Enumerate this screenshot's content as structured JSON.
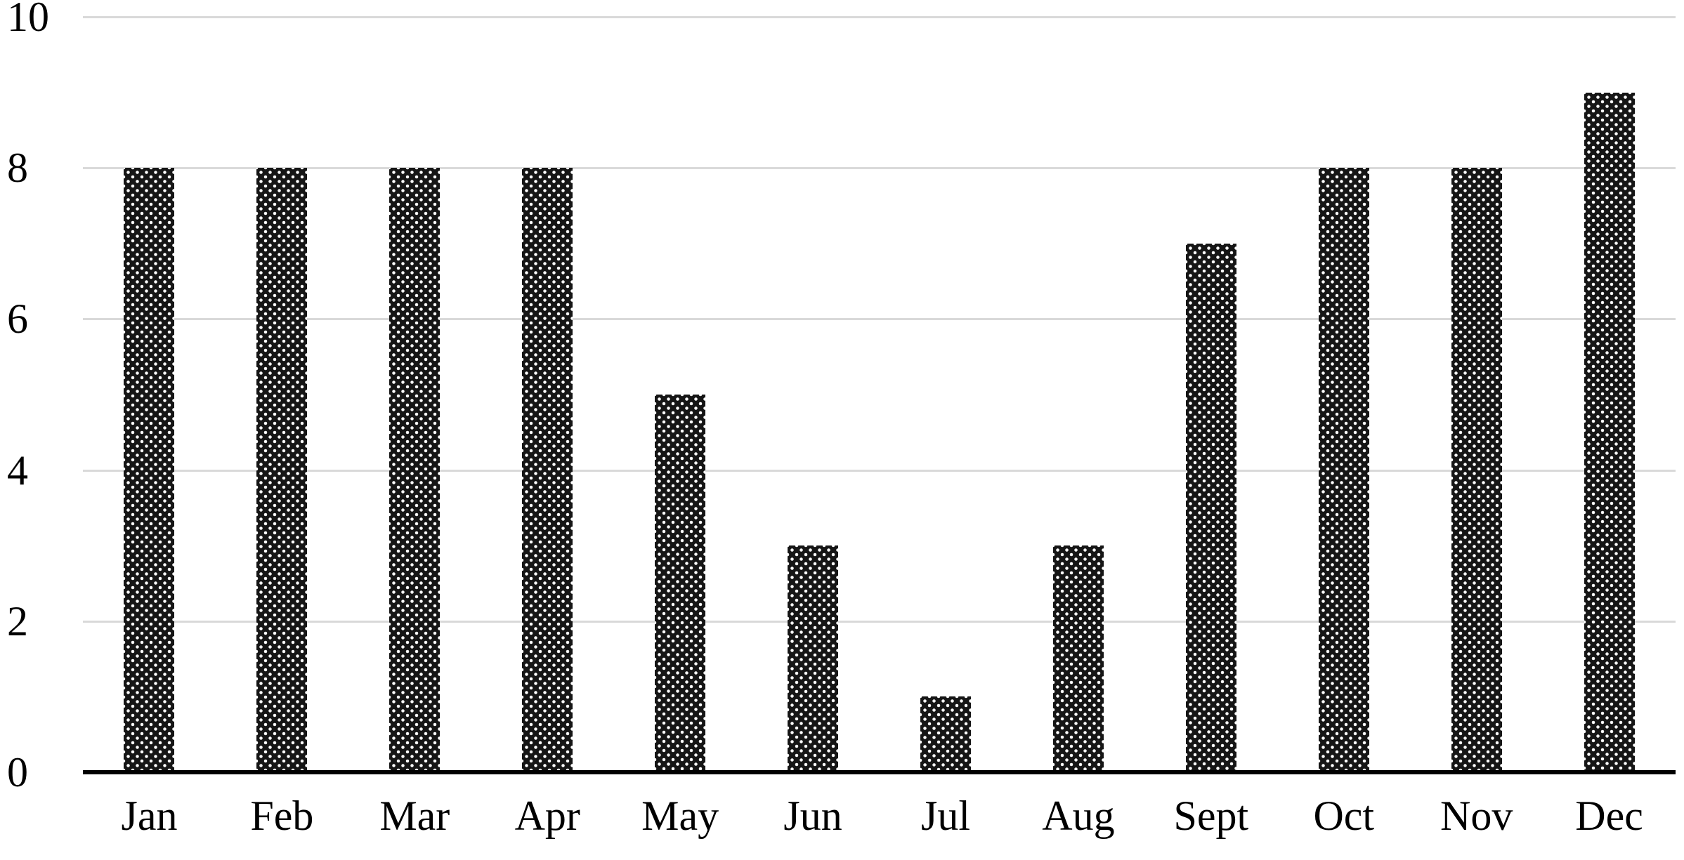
{
  "chart_data": {
    "type": "bar",
    "title": "",
    "xlabel": "",
    "ylabel": "",
    "categories": [
      "Jan",
      "Feb",
      "Mar",
      "Apr",
      "May",
      "Jun",
      "Jul",
      "Aug",
      "Sept",
      "Oct",
      "Nov",
      "Dec"
    ],
    "values": [
      8,
      8,
      8,
      8,
      5,
      3,
      1,
      3,
      7,
      8,
      8,
      9
    ],
    "ylim": [
      0,
      10
    ],
    "yticks": [
      0,
      2,
      4,
      6,
      8,
      10
    ],
    "grid": true,
    "legend_position": "none",
    "bar_pattern": "black-with-white-dots"
  },
  "colors": {
    "bar_fill": "#161616",
    "bar_dot": "#ffffff",
    "gridline": "#d9d9d9",
    "axis_line": "#000000",
    "background": "#ffffff",
    "label_text": "#000000"
  }
}
